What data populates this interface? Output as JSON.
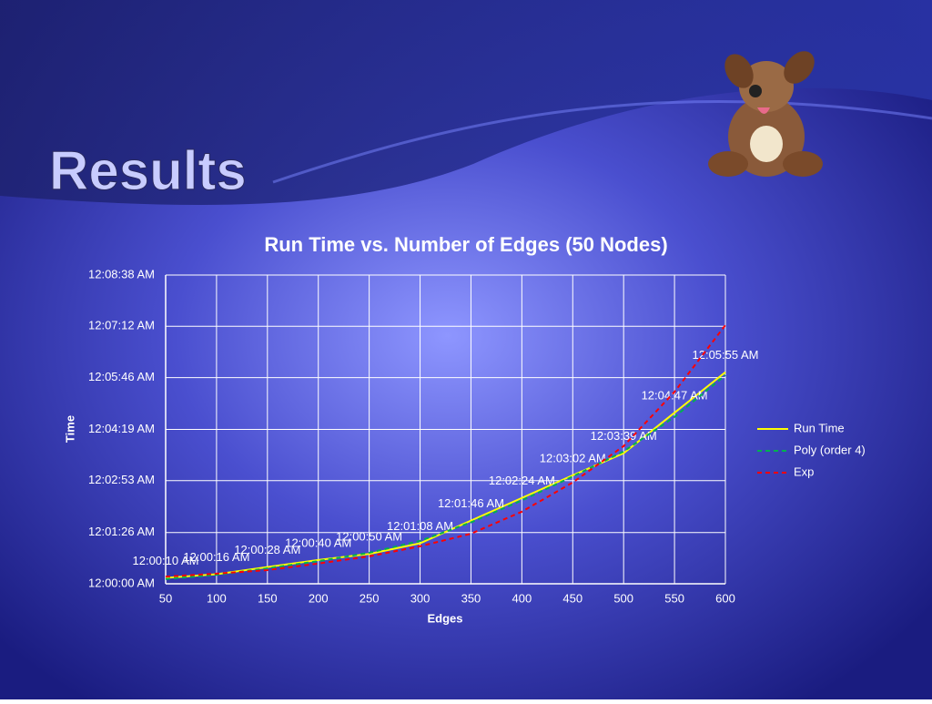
{
  "slide_title": "Results",
  "chart_data": {
    "type": "line",
    "title": "Run Time vs. Number of Edges (50 Nodes)",
    "x_label": "Edges",
    "y_label": "Time",
    "x": [
      50,
      100,
      150,
      200,
      250,
      300,
      350,
      400,
      450,
      500,
      550,
      600
    ],
    "xlim": [
      50,
      600
    ],
    "xticks": [
      50,
      100,
      150,
      200,
      250,
      300,
      350,
      400,
      450,
      500,
      550,
      600
    ],
    "ylim": [
      0,
      518
    ],
    "yticks": [
      {
        "value": 0,
        "label": "12:00:00 AM"
      },
      {
        "value": 86,
        "label": "12:01:26 AM"
      },
      {
        "value": 173,
        "label": "12:02:53 AM"
      },
      {
        "value": 259,
        "label": "12:04:19 AM"
      },
      {
        "value": 346,
        "label": "12:05:46 AM"
      },
      {
        "value": 432,
        "label": "12:07:12 AM"
      },
      {
        "value": 518,
        "label": "12:08:38 AM"
      }
    ],
    "grid": true,
    "legend": "right",
    "series": [
      {
        "name": "Run Time",
        "color": "#ffff00",
        "style": "solid",
        "values": [
          10,
          16,
          28,
          40,
          50,
          68,
          106,
          144,
          182,
          219,
          287,
          355
        ],
        "value_labels": [
          "12:00:10 AM",
          "12:00:16 AM",
          "12:00:28 AM",
          "12:00:40 AM",
          "12:00:50 AM",
          "12:01:08 AM",
          "12:01:46 AM",
          "12:02:24 AM",
          "12:03:02 AM",
          "12:03:39 AM",
          "12:04:47 AM",
          "12:05:55 AM"
        ]
      },
      {
        "name": "Poly (order 4)",
        "color": "#00b050",
        "style": "dashed",
        "values": [
          8,
          15,
          26,
          38,
          52,
          72,
          103,
          140,
          180,
          222,
          280,
          350
        ]
      },
      {
        "name": "Exp",
        "color": "#ff0000",
        "style": "dashed",
        "values": [
          12,
          17,
          23,
          34,
          46,
          63,
          84,
          121,
          170,
          231,
          322,
          434
        ]
      }
    ]
  }
}
